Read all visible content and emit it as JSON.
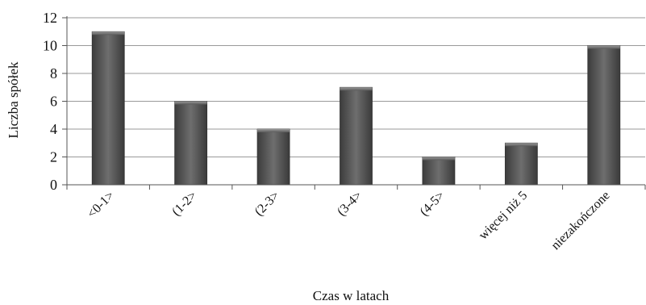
{
  "chart_data": {
    "type": "bar",
    "title": "",
    "xlabel": "Czas w latach",
    "ylabel": "Liczba spółek",
    "categories": [
      "<0-1>",
      "(1-2>",
      "(2-3>",
      "(3-4>",
      "(4-5>",
      "więcej niż 5",
      "niezakończone"
    ],
    "values": [
      11,
      6,
      4,
      7,
      2,
      3,
      10
    ],
    "ylim": [
      0,
      12
    ],
    "yticks": [
      0,
      2,
      4,
      6,
      8,
      10,
      12
    ],
    "grid": true,
    "legend": "none",
    "bar_color": "#555555",
    "grid_color": "#9a9a9a"
  }
}
